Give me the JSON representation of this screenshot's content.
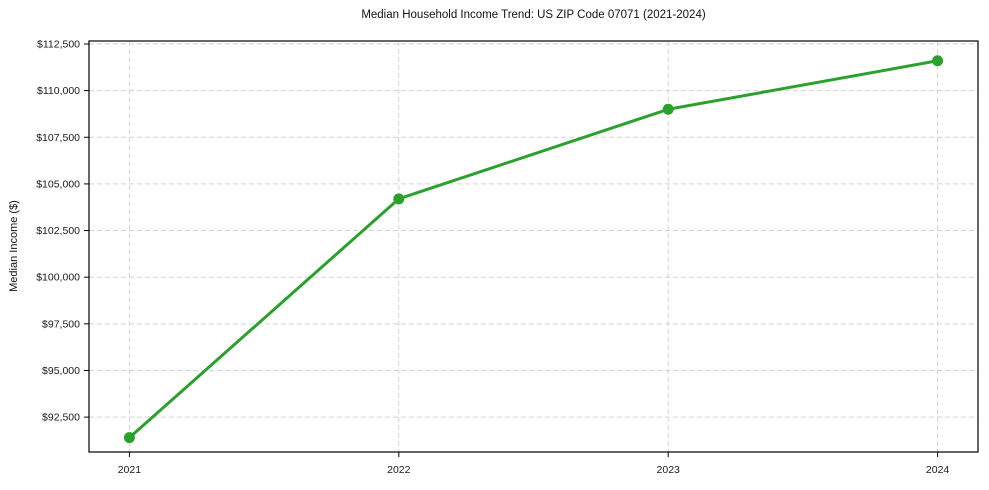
{
  "chart_data": {
    "type": "line",
    "title": "Median Household Income Trend: US ZIP Code 07071 (2021-2024)",
    "xlabel": "",
    "ylabel": "Median Income ($)",
    "x": [
      2021,
      2022,
      2023,
      2024
    ],
    "xtick_labels": [
      "2021",
      "2022",
      "2023",
      "2024"
    ],
    "values": [
      91400,
      104200,
      109000,
      111600
    ],
    "yticks": [
      92500,
      95000,
      97500,
      100000,
      102500,
      105000,
      107500,
      110000,
      112500
    ],
    "ytick_labels": [
      "$92,500",
      "$95,000",
      "$97,500",
      "$100,000",
      "$102,500",
      "$105,000",
      "$107,500",
      "$110,000",
      "$112,500"
    ],
    "xlim": [
      2020.85,
      2024.15
    ],
    "ylim": [
      90630,
      112660
    ],
    "grid": true,
    "grid_style": "dashed",
    "legend": false,
    "line_color": "#2ca02c",
    "marker": "circle",
    "marker_radius": 5.5,
    "line_width": 3,
    "grid_color": "#d3d3d3",
    "spine_color": "#000000",
    "tick_color": "#000000",
    "text_color": "#1a1a1a",
    "background_color": "#ffffff"
  }
}
